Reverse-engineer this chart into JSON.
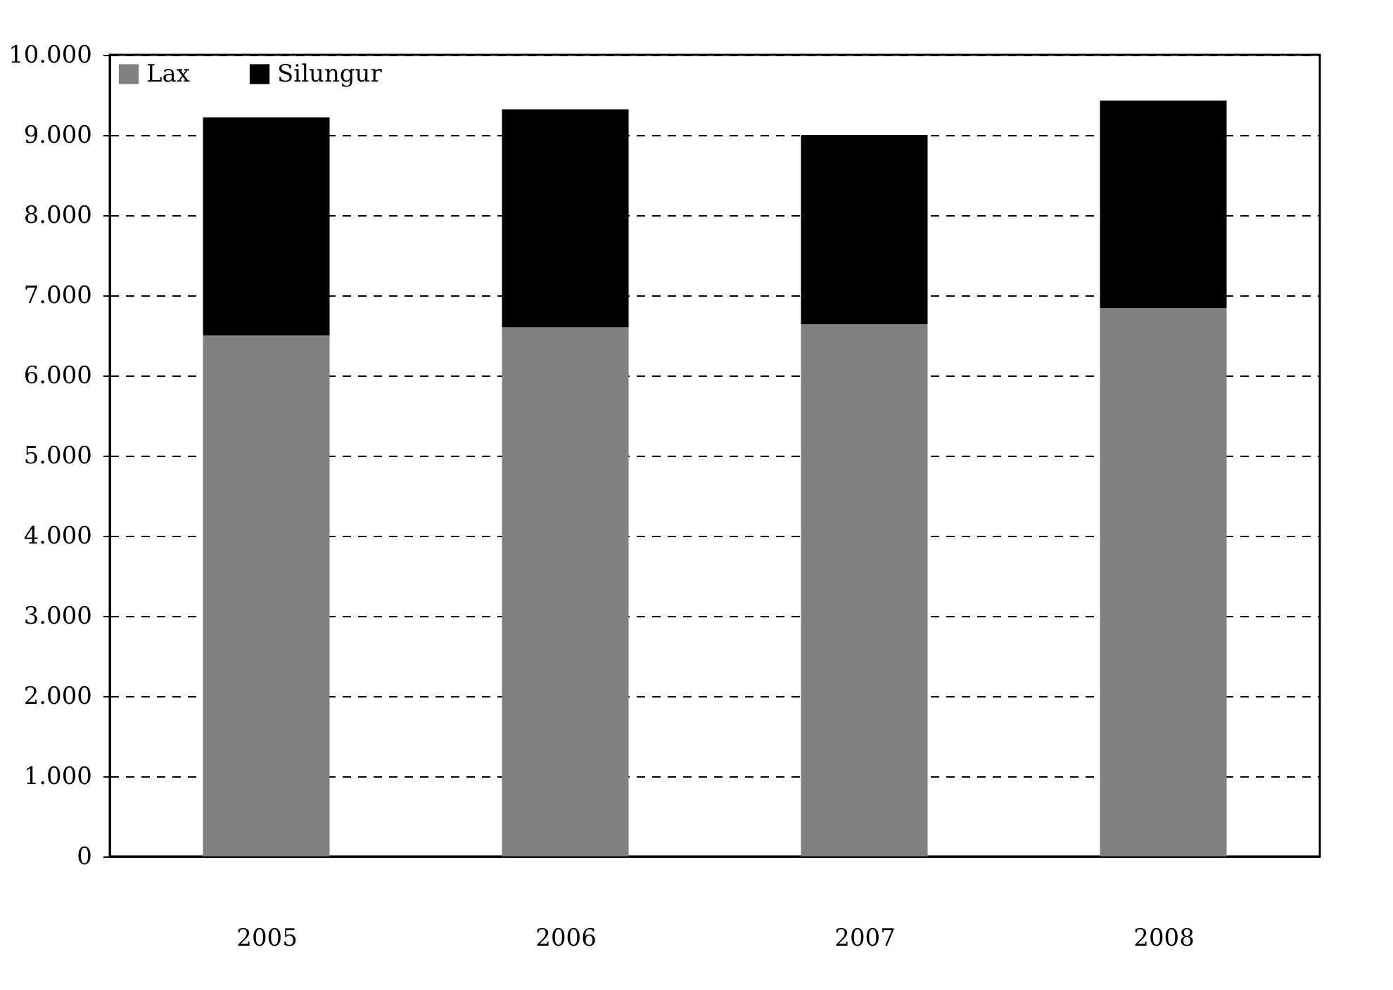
{
  "chart_data": {
    "type": "bar",
    "stacked": true,
    "categories": [
      "2005",
      "2006",
      "2007",
      "2008"
    ],
    "series": [
      {
        "name": "Lax",
        "color": "#808080",
        "values": [
          6500,
          6600,
          6640,
          6840
        ]
      },
      {
        "name": "Silungur",
        "color": "#000000",
        "values": [
          2720,
          2720,
          2360,
          2590
        ]
      }
    ],
    "ylim": [
      0,
      10000
    ],
    "yticks": [
      {
        "value": 0,
        "label": "0"
      },
      {
        "value": 1000,
        "label": "1.000"
      },
      {
        "value": 2000,
        "label": "2.000"
      },
      {
        "value": 3000,
        "label": "3.000"
      },
      {
        "value": 4000,
        "label": "4.000"
      },
      {
        "value": 5000,
        "label": "5.000"
      },
      {
        "value": 6000,
        "label": "6.000"
      },
      {
        "value": 7000,
        "label": "7.000"
      },
      {
        "value": 8000,
        "label": "8.000"
      },
      {
        "value": 9000,
        "label": "9.000"
      },
      {
        "value": 10000,
        "label": "10.000"
      }
    ],
    "grid": "y",
    "legend": "top left"
  }
}
